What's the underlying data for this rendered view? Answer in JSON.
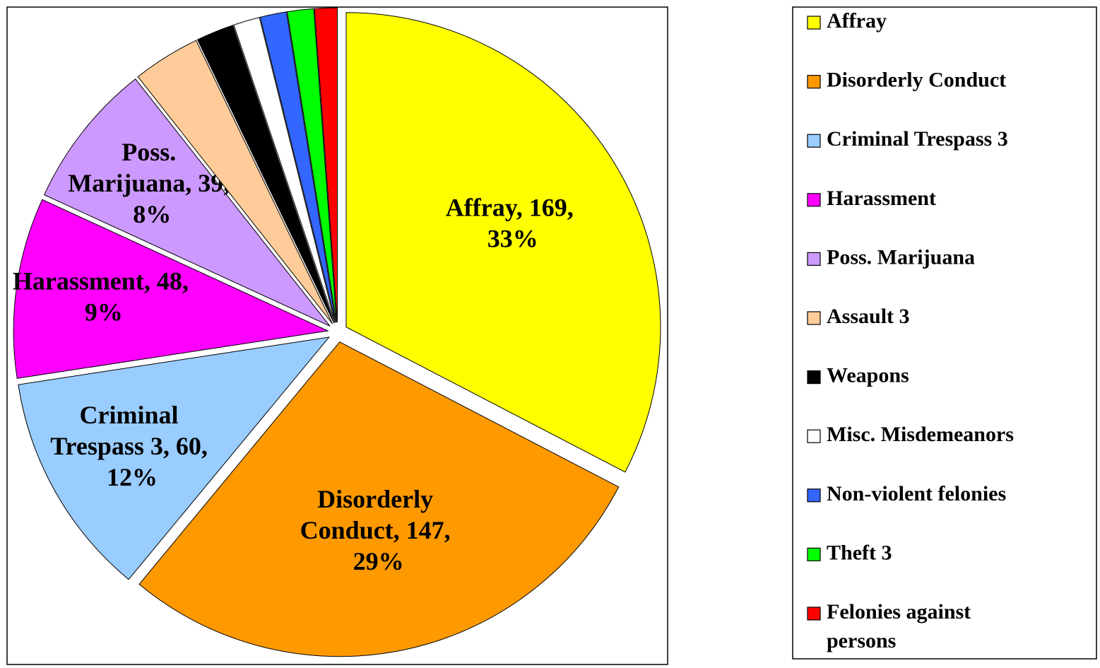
{
  "chart_data": {
    "type": "pie",
    "categories": [
      "Affray",
      "Disorderly Conduct",
      "Criminal Trespass 3",
      "Harassment",
      "Poss. Marijuana",
      "Assault 3",
      "Weapons",
      "Misc. Misdemeanors",
      "Non-violent felonies",
      "Theft 3",
      "Felonies against persons"
    ],
    "values": [
      169,
      147,
      60,
      48,
      39,
      18,
      10,
      7,
      7,
      7,
      6
    ],
    "value_labels": [
      "Affray, 169, 33%",
      "Disorderly Conduct, 147, 29%",
      "Criminal Trespass 3, 60, 12%",
      "Harassment, 48, 9%",
      "Poss. Marijuana, 39, 8%",
      null,
      null,
      null,
      null,
      null,
      null
    ],
    "colors": [
      "#ffff00",
      "#ff9900",
      "#99ccff",
      "#ff00ff",
      "#cc99ff",
      "#ffcc99",
      "#000000",
      "#ffffff",
      "#3366ff",
      "#00ff00",
      "#ff0000"
    ],
    "legend": "right"
  }
}
